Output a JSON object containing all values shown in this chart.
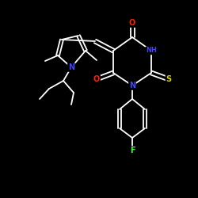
{
  "background_color": "#000000",
  "bond_color": "#ffffff",
  "atom_colors": {
    "N": "#4444ff",
    "O": "#ff2200",
    "S": "#d4d400",
    "F": "#44ff44",
    "C": "#ffffff",
    "H": "#ffffff"
  },
  "figsize": [
    2.5,
    2.5
  ],
  "dpi": 100
}
